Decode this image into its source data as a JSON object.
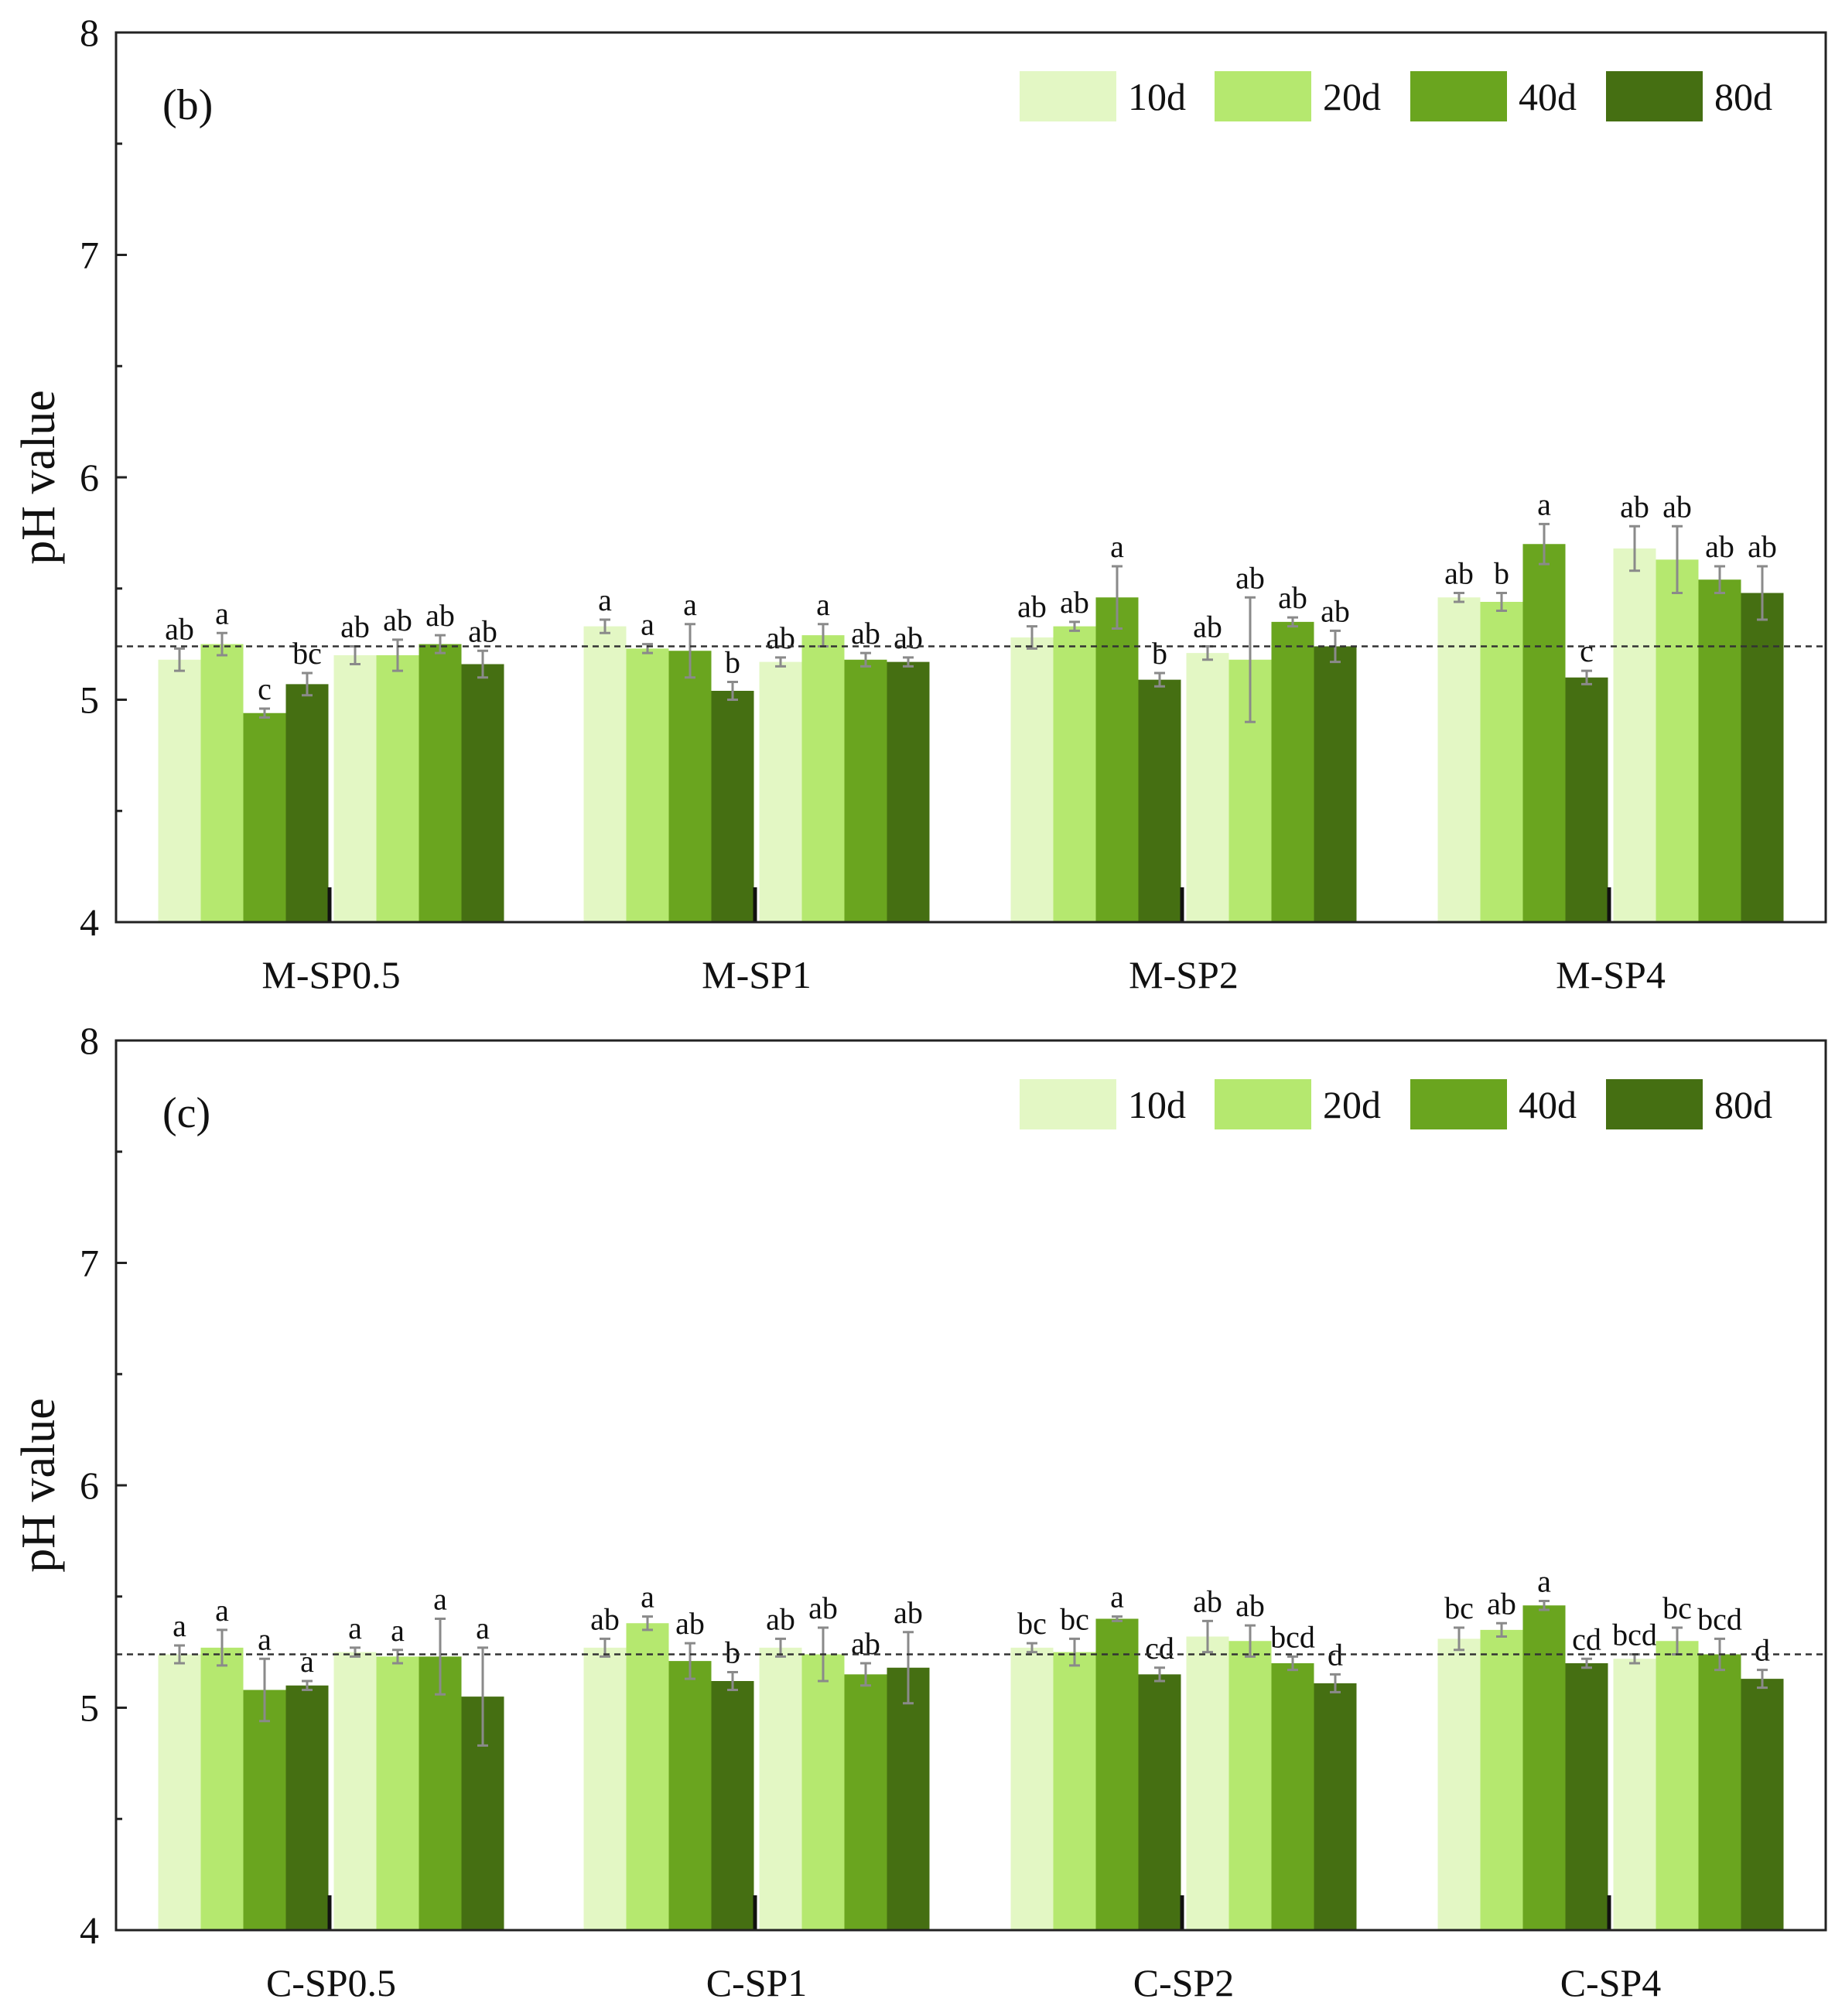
{
  "colors": {
    "10d": "#e3f7c4",
    "20d": "#b5e86f",
    "40d": "#6aa51f",
    "80d": "#456f12",
    "errorbar": "#8a8a8a",
    "axis": "#222222"
  },
  "chart_data": [
    {
      "type": "bar",
      "panel_label": "(b)",
      "ylabel": "pH value",
      "ylim": [
        4,
        8
      ],
      "yticks": [
        "4",
        "5",
        "6",
        "7",
        "8"
      ],
      "reference_line": 5.24,
      "legend": [
        "10d",
        "20d",
        "40d",
        "80d"
      ],
      "legend_position": "top-right",
      "categories": [
        "M-SP0.5",
        "M-SP1",
        "M-SP2",
        "M-SP4"
      ],
      "groups": [
        {
          "category": "M-SP0.5",
          "series": [
            "10d",
            "20d",
            "40d",
            "80d",
            "10d",
            "20d",
            "40d",
            "80d"
          ],
          "values": [
            5.18,
            5.25,
            4.94,
            5.07,
            5.2,
            5.2,
            5.25,
            5.16
          ],
          "errors": [
            0.05,
            0.05,
            0.02,
            0.05,
            0.04,
            0.07,
            0.04,
            0.06
          ],
          "letters": [
            "ab",
            "a",
            "c",
            "bc",
            "ab",
            "ab",
            "ab",
            "ab"
          ]
        },
        {
          "category": "M-SP1",
          "series": [
            "10d",
            "20d",
            "40d",
            "80d",
            "10d",
            "20d",
            "40d",
            "80d"
          ],
          "values": [
            5.33,
            5.23,
            5.22,
            5.04,
            5.17,
            5.29,
            5.18,
            5.17
          ],
          "errors": [
            0.03,
            0.02,
            0.12,
            0.04,
            0.02,
            0.05,
            0.03,
            0.02
          ],
          "letters": [
            "a",
            "a",
            "a",
            "b",
            "ab",
            "a",
            "ab",
            "ab"
          ]
        },
        {
          "category": "M-SP2",
          "series": [
            "10d",
            "20d",
            "40d",
            "80d",
            "10d",
            "20d",
            "40d",
            "80d"
          ],
          "values": [
            5.28,
            5.33,
            5.46,
            5.09,
            5.21,
            5.18,
            5.35,
            5.24
          ],
          "errors": [
            0.05,
            0.02,
            0.14,
            0.03,
            0.03,
            0.28,
            0.02,
            0.07
          ],
          "letters": [
            "ab",
            "ab",
            "a",
            "b",
            "ab",
            "ab",
            "ab",
            "ab"
          ]
        },
        {
          "category": "M-SP4",
          "series": [
            "10d",
            "20d",
            "40d",
            "80d",
            "10d",
            "20d",
            "40d",
            "80d"
          ],
          "values": [
            5.46,
            5.44,
            5.7,
            5.1,
            5.68,
            5.63,
            5.54,
            5.48
          ],
          "errors": [
            0.02,
            0.04,
            0.09,
            0.03,
            0.1,
            0.15,
            0.06,
            0.12
          ],
          "letters": [
            "ab",
            "b",
            "a",
            "c",
            "ab",
            "ab",
            "ab",
            "ab"
          ]
        }
      ]
    },
    {
      "type": "bar",
      "panel_label": "(c)",
      "ylabel": "pH value",
      "ylim": [
        4,
        8
      ],
      "yticks": [
        "4",
        "5",
        "6",
        "7",
        "8"
      ],
      "reference_line": 5.24,
      "legend": [
        "10d",
        "20d",
        "40d",
        "80d"
      ],
      "legend_position": "top-right",
      "categories": [
        "C-SP0.5",
        "C-SP1",
        "C-SP2",
        "C-SP4"
      ],
      "groups": [
        {
          "category": "C-SP0.5",
          "series": [
            "10d",
            "20d",
            "40d",
            "80d",
            "10d",
            "20d",
            "40d",
            "80d"
          ],
          "values": [
            5.24,
            5.27,
            5.08,
            5.1,
            5.25,
            5.23,
            5.23,
            5.05
          ],
          "errors": [
            0.04,
            0.08,
            0.14,
            0.02,
            0.02,
            0.03,
            0.17,
            0.22
          ],
          "letters": [
            "a",
            "a",
            "a",
            "a",
            "a",
            "a",
            "a",
            "a"
          ]
        },
        {
          "category": "C-SP1",
          "series": [
            "10d",
            "20d",
            "40d",
            "80d",
            "10d",
            "20d",
            "40d",
            "80d"
          ],
          "values": [
            5.27,
            5.38,
            5.21,
            5.12,
            5.27,
            5.24,
            5.15,
            5.18
          ],
          "errors": [
            0.04,
            0.03,
            0.08,
            0.04,
            0.04,
            0.12,
            0.05,
            0.16
          ],
          "letters": [
            "ab",
            "a",
            "ab",
            "b",
            "ab",
            "ab",
            "ab",
            "ab"
          ]
        },
        {
          "category": "C-SP2",
          "series": [
            "10d",
            "20d",
            "40d",
            "80d",
            "10d",
            "20d",
            "40d",
            "80d"
          ],
          "values": [
            5.27,
            5.25,
            5.4,
            5.15,
            5.32,
            5.3,
            5.2,
            5.11
          ],
          "errors": [
            0.02,
            0.06,
            0.01,
            0.03,
            0.07,
            0.07,
            0.03,
            0.04
          ],
          "letters": [
            "bc",
            "bc",
            "a",
            "cd",
            "ab",
            "ab",
            "bcd",
            "d"
          ]
        },
        {
          "category": "C-SP4",
          "series": [
            "10d",
            "20d",
            "40d",
            "80d",
            "10d",
            "20d",
            "40d",
            "80d"
          ],
          "values": [
            5.31,
            5.35,
            5.46,
            5.2,
            5.22,
            5.3,
            5.24,
            5.13
          ],
          "errors": [
            0.05,
            0.03,
            0.02,
            0.02,
            0.02,
            0.06,
            0.07,
            0.04
          ],
          "letters": [
            "bc",
            "ab",
            "a",
            "cd",
            "bcd",
            "bc",
            "bcd",
            "d"
          ]
        }
      ]
    }
  ]
}
